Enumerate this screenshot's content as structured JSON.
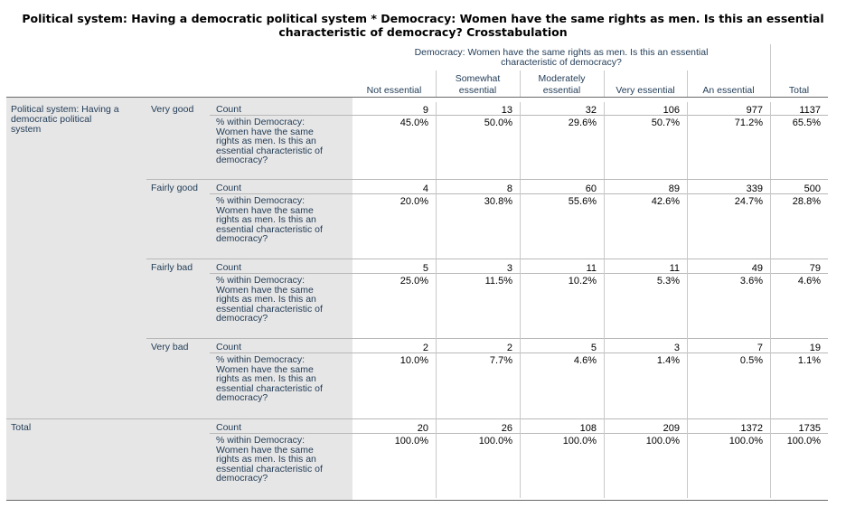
{
  "title": {
    "line1": "Political system: Having a democratic political system * Democracy: Women have the same rights as men. Is this an essential",
    "line2": "characteristic of democracy? Crosstabulation"
  },
  "header": {
    "column_group_line1": "Democracy: Women have the same rights as men. Is this an essential",
    "column_group_line2": "characteristic of democracy?",
    "columns": [
      {
        "l1": "",
        "l2": "Not essential"
      },
      {
        "l1": "Somewhat",
        "l2": "essential"
      },
      {
        "l1": "Moderately",
        "l2": "essential"
      },
      {
        "l1": "",
        "l2": "Very essential"
      },
      {
        "l1": "",
        "l2": "An essential"
      },
      {
        "l1": "",
        "l2": "Total"
      }
    ]
  },
  "row_variable": {
    "line1": "Political system: Having a",
    "line2": "democratic political",
    "line3": "system"
  },
  "stat_labels": {
    "count": "Count",
    "pct_l1": "% within Democracy:",
    "pct_l2": "Women have the same",
    "pct_l3": "rights as men. Is this an",
    "pct_l4": "essential characteristic of",
    "pct_l5": "democracy?"
  },
  "groups": [
    {
      "label": "Very good",
      "count": [
        "9",
        "13",
        "32",
        "106",
        "977",
        "1137"
      ],
      "pct": [
        "45.0%",
        "50.0%",
        "29.6%",
        "50.7%",
        "71.2%",
        "65.5%"
      ]
    },
    {
      "label": "Fairly good",
      "count": [
        "4",
        "8",
        "60",
        "89",
        "339",
        "500"
      ],
      "pct": [
        "20.0%",
        "30.8%",
        "55.6%",
        "42.6%",
        "24.7%",
        "28.8%"
      ]
    },
    {
      "label": "Fairly bad",
      "count": [
        "5",
        "3",
        "11",
        "11",
        "49",
        "79"
      ],
      "pct": [
        "25.0%",
        "11.5%",
        "10.2%",
        "5.3%",
        "3.6%",
        "4.6%"
      ]
    },
    {
      "label": "Very bad",
      "count": [
        "2",
        "2",
        "5",
        "3",
        "7",
        "19"
      ],
      "pct": [
        "10.0%",
        "7.7%",
        "4.6%",
        "1.4%",
        "0.5%",
        "1.1%"
      ]
    },
    {
      "label": "Total",
      "count": [
        "20",
        "26",
        "108",
        "209",
        "1372",
        "1735"
      ],
      "pct": [
        "100.0%",
        "100.0%",
        "100.0%",
        "100.0%",
        "100.0%",
        "100.0%"
      ]
    }
  ]
}
